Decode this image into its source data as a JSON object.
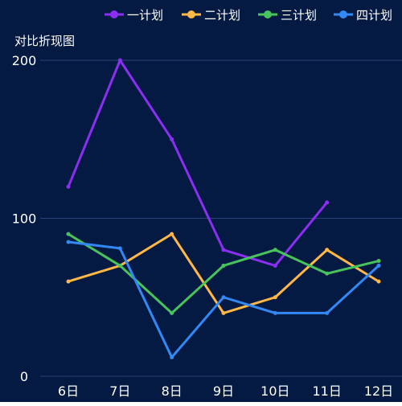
{
  "chart_data": {
    "type": "line",
    "title": "对比折现图",
    "categories": [
      "6日",
      "7日",
      "8日",
      "9日",
      "10日",
      "11日",
      "12日"
    ],
    "ylim": [
      0,
      200
    ],
    "yticks": [
      0,
      100,
      200
    ],
    "grid": true,
    "legend_position": "top-right",
    "colors": {
      "background": "#051a42",
      "gridline": "#2b4477"
    },
    "series": [
      {
        "name": "一计划",
        "color": "#8a2ff2",
        "values": [
          120,
          200,
          150,
          80,
          70,
          110,
          null
        ]
      },
      {
        "name": "二计划",
        "color": "#ffb845",
        "values": [
          60,
          70,
          90,
          40,
          50,
          80,
          60
        ]
      },
      {
        "name": "三计划",
        "color": "#47c45c",
        "values": [
          90,
          70,
          40,
          70,
          80,
          65,
          73
        ]
      },
      {
        "name": "四计划",
        "color": "#3289f5",
        "values": [
          85,
          81,
          12,
          50,
          40,
          40,
          70
        ]
      }
    ]
  }
}
